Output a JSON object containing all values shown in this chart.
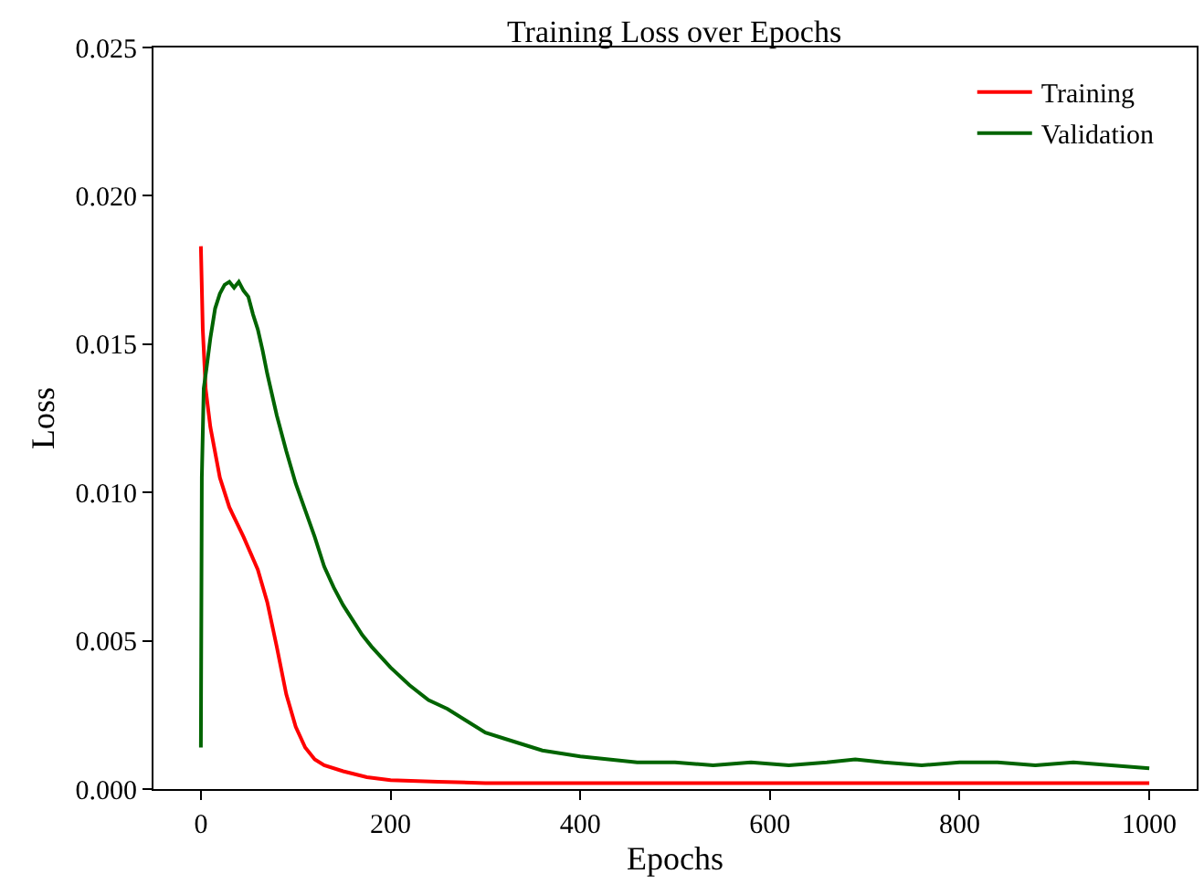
{
  "chart_data": {
    "type": "line",
    "title": "Training Loss over Epochs",
    "xlabel": "Epochs",
    "ylabel": "Loss",
    "xlim": [
      -50,
      1050
    ],
    "ylim": [
      0,
      0.025
    ],
    "xticks": [
      0,
      200,
      400,
      600,
      800,
      1000
    ],
    "yticks": [
      {
        "value": 0,
        "label": "0.000"
      },
      {
        "value": 0.005,
        "label": "0.005"
      },
      {
        "value": 0.01,
        "label": "0.010"
      },
      {
        "value": 0.015,
        "label": "0.015"
      },
      {
        "value": 0.02,
        "label": "0.020"
      },
      {
        "value": 0.025,
        "label": "0.025"
      }
    ],
    "legend": "top right",
    "marker": "none",
    "line_style": "solid",
    "series": [
      {
        "name": "Training",
        "color": "#ff0000",
        "x": [
          0,
          2,
          5,
          10,
          20,
          30,
          45,
          60,
          70,
          80,
          90,
          100,
          110,
          120,
          130,
          150,
          175,
          200,
          250,
          300,
          400,
          500,
          600,
          700,
          800,
          900,
          1000
        ],
        "values": [
          0.0183,
          0.0155,
          0.0135,
          0.0122,
          0.0105,
          0.0095,
          0.0085,
          0.0074,
          0.0063,
          0.0048,
          0.0032,
          0.0021,
          0.0014,
          0.001,
          0.0008,
          0.0006,
          0.0004,
          0.0003,
          0.00025,
          0.0002,
          0.0002,
          0.0002,
          0.0002,
          0.0002,
          0.0002,
          0.0002,
          0.0002
        ]
      },
      {
        "name": "Validation",
        "color": "#006400",
        "x": [
          0,
          1,
          3,
          6,
          10,
          15,
          20,
          25,
          30,
          35,
          40,
          45,
          50,
          55,
          60,
          65,
          70,
          80,
          90,
          100,
          110,
          120,
          130,
          140,
          150,
          160,
          170,
          180,
          200,
          220,
          240,
          260,
          280,
          300,
          320,
          340,
          360,
          380,
          400,
          430,
          460,
          500,
          540,
          580,
          620,
          660,
          690,
          720,
          760,
          800,
          840,
          880,
          920,
          960,
          1000
        ],
        "values": [
          0.0014,
          0.0105,
          0.0135,
          0.0142,
          0.0152,
          0.0162,
          0.0167,
          0.017,
          0.0171,
          0.0169,
          0.0171,
          0.0168,
          0.0166,
          0.016,
          0.0155,
          0.0148,
          0.014,
          0.0126,
          0.0114,
          0.0103,
          0.0094,
          0.0085,
          0.0075,
          0.0068,
          0.0062,
          0.0057,
          0.0052,
          0.0048,
          0.0041,
          0.0035,
          0.003,
          0.0027,
          0.0023,
          0.0019,
          0.0017,
          0.0015,
          0.0013,
          0.0012,
          0.0011,
          0.001,
          0.0009,
          0.0009,
          0.0008,
          0.0009,
          0.0008,
          0.0009,
          0.001,
          0.0009,
          0.0008,
          0.0009,
          0.0009,
          0.0008,
          0.0009,
          0.0008,
          0.0007
        ]
      }
    ]
  }
}
